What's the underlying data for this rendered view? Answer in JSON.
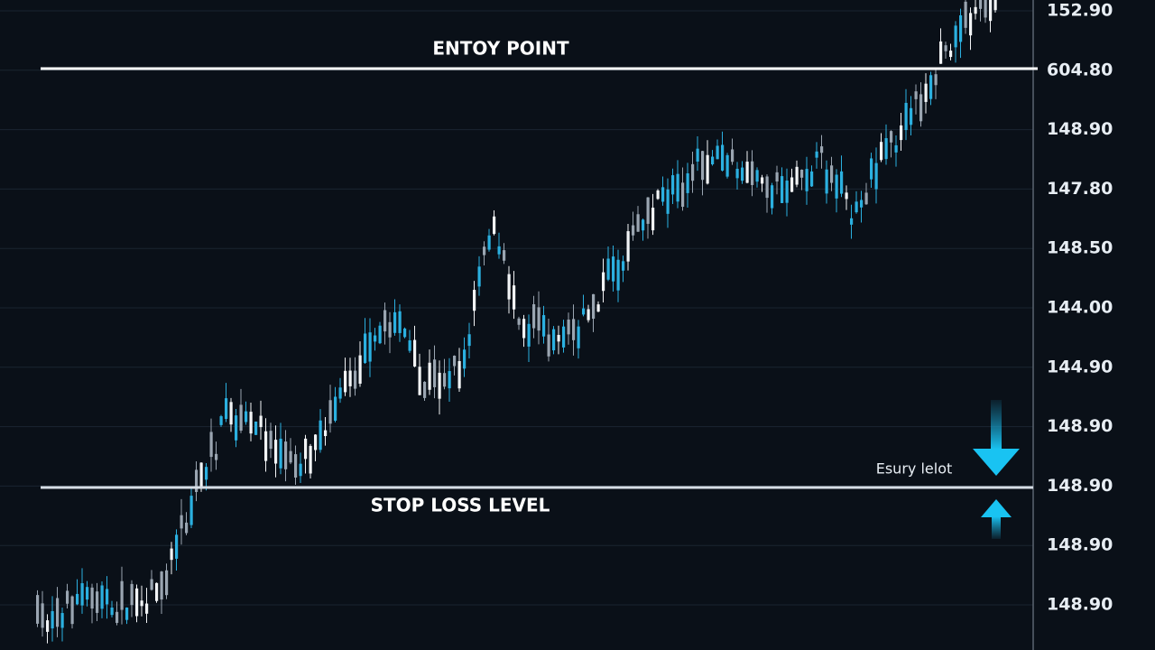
{
  "labels": {
    "entry": "ENTOY POINT",
    "stop_loss": "STOP LOSS LEVEL",
    "marker": "Esury lelot"
  },
  "price_axis": [
    "152.90",
    "604.80",
    "148.90",
    "147.80",
    "148.50",
    "144.00",
    "144.90",
    "148.90",
    "148.90",
    "148.90",
    "148.90"
  ]
}
